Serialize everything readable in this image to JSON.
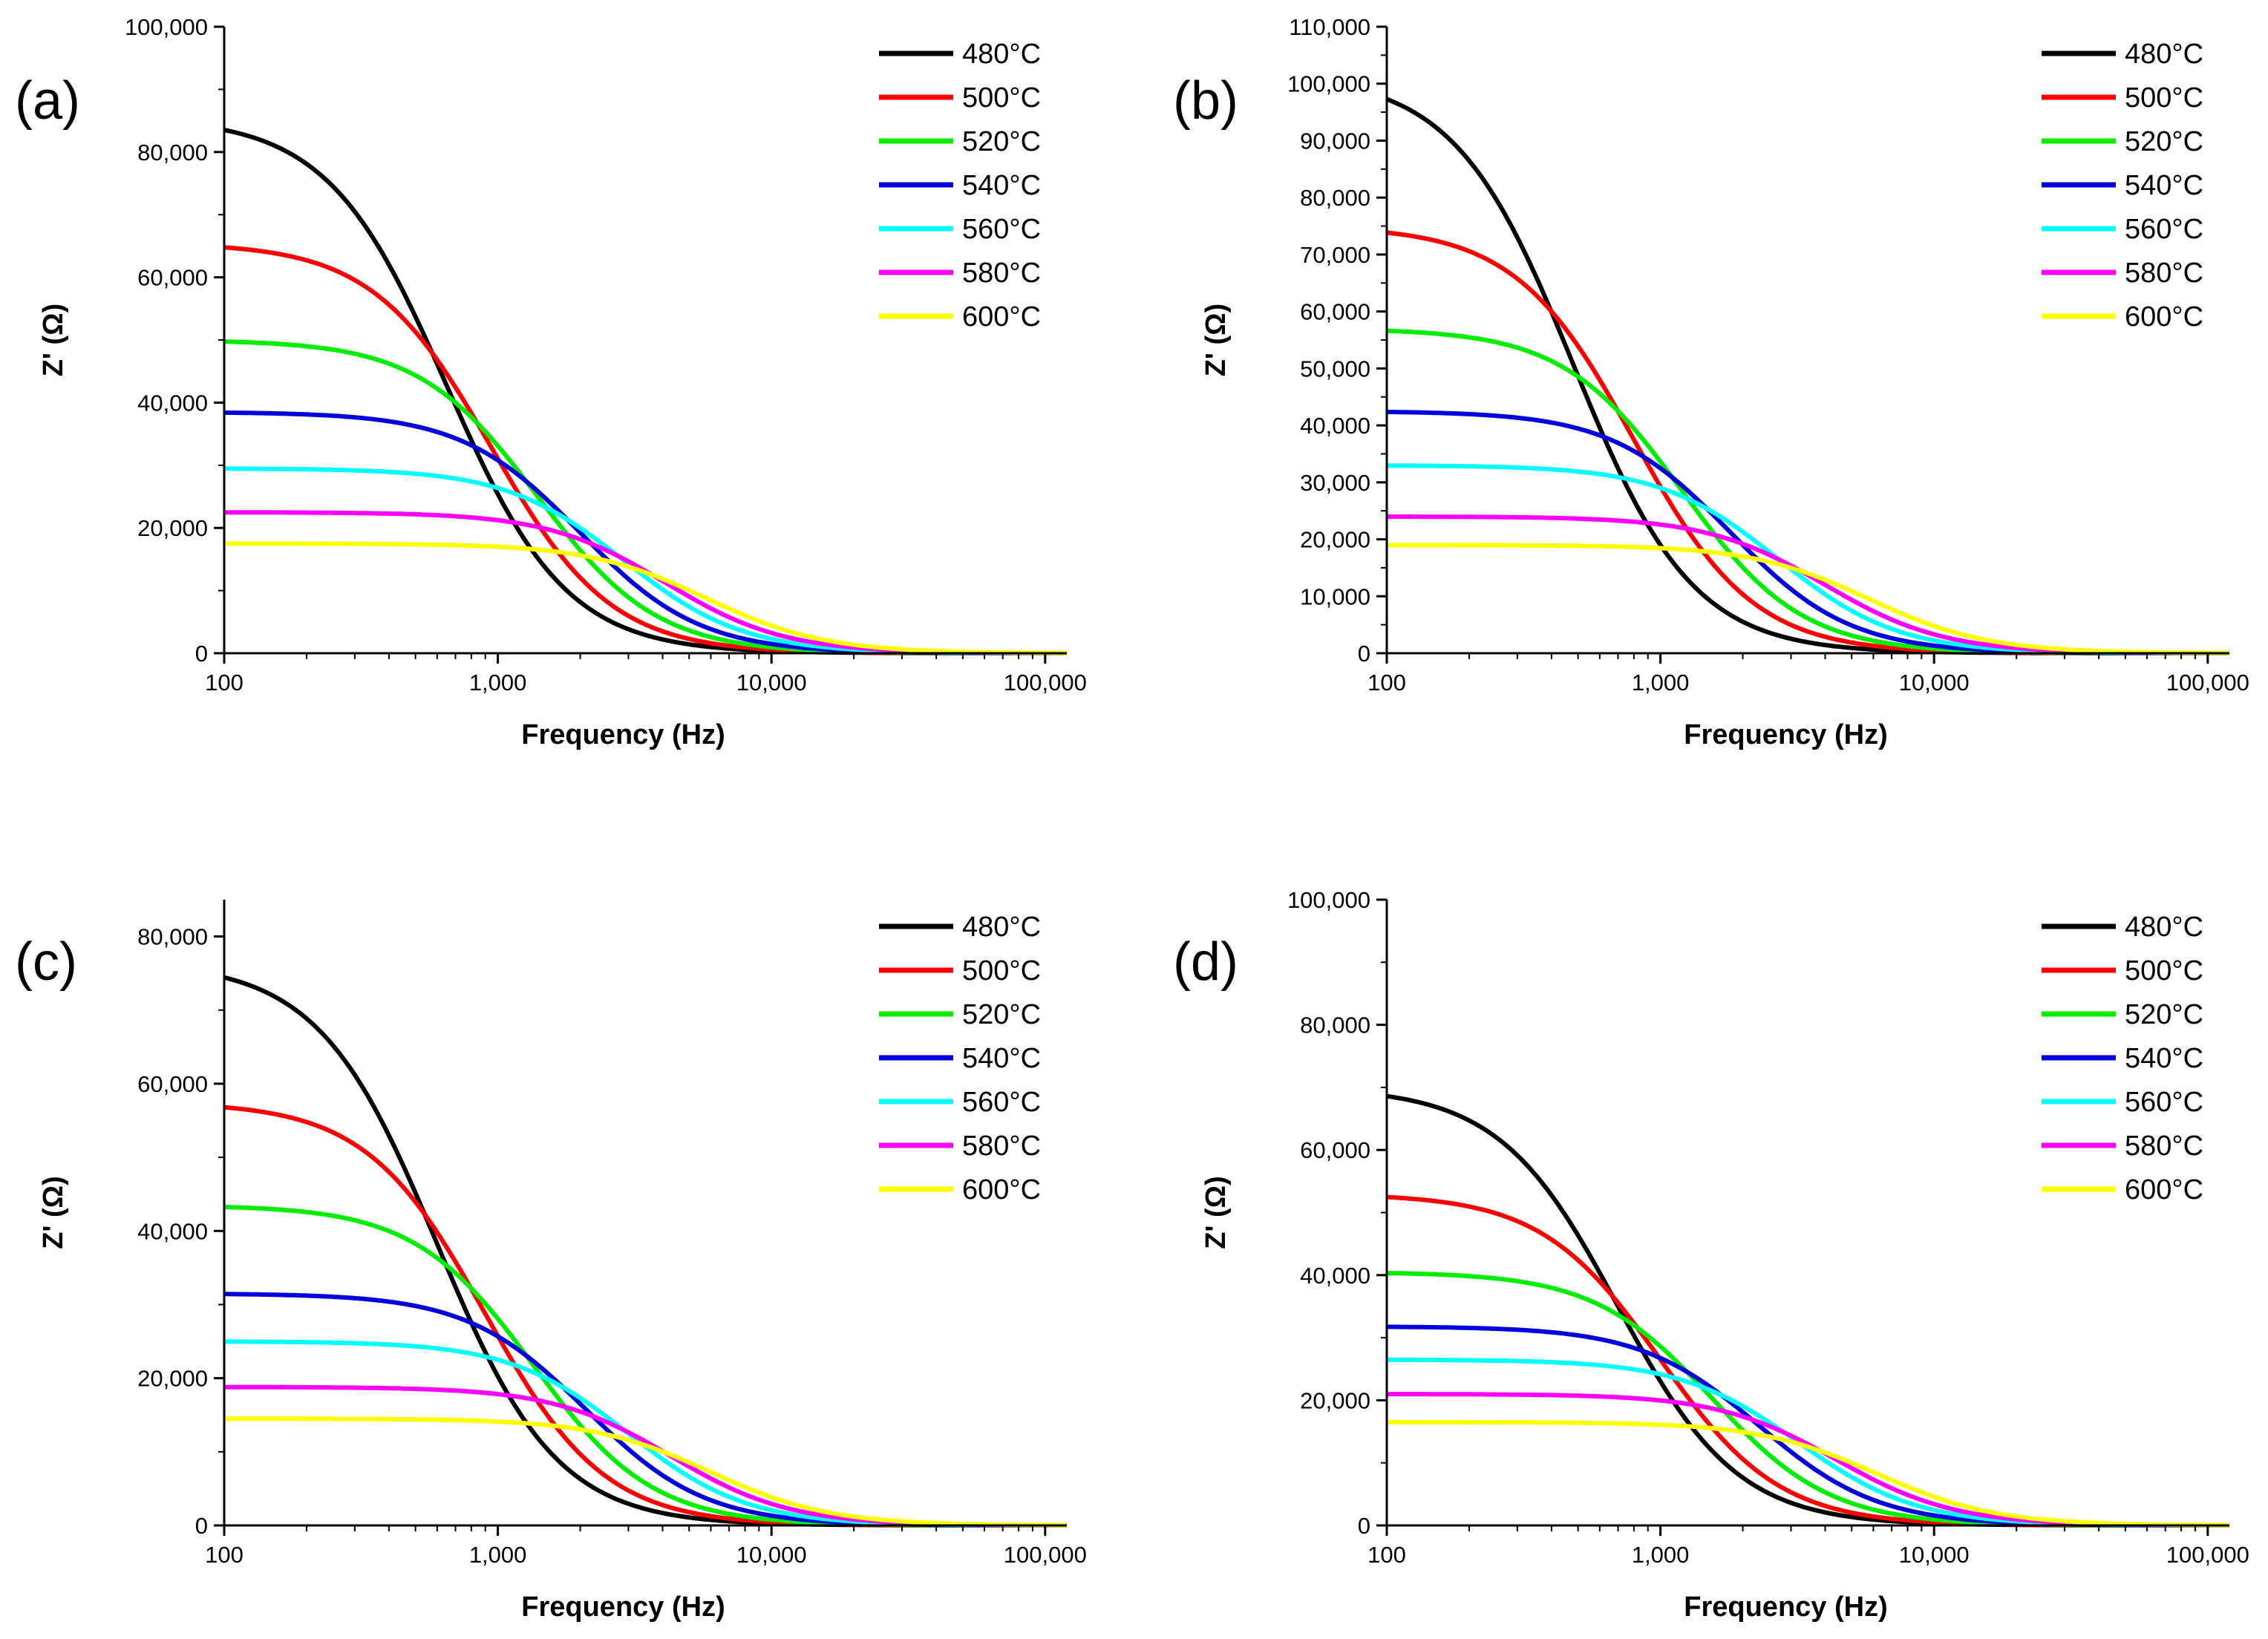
{
  "chart_data": [
    {
      "type": "line",
      "panel_label": "(a)",
      "xlabel": "Frequency (Hz)",
      "ylabel": "Z' (Ω)",
      "xscale": "log",
      "xlim": [
        100,
        120000
      ],
      "ylim": [
        0,
        100000
      ],
      "xticks": [
        100,
        1000,
        10000,
        100000
      ],
      "xtick_labels": [
        "100",
        "1,000",
        "10,000",
        "100,000"
      ],
      "yticks": [
        0,
        20000,
        40000,
        60000,
        80000,
        100000
      ],
      "ytick_labels": [
        "0",
        "20,000",
        "40,000",
        "60,000",
        "80,000",
        "100,000"
      ],
      "legend_position": "top-right",
      "series": [
        {
          "name": "480",
          "color": "#000000",
          "plateau": 85500,
          "f_half": 650
        },
        {
          "name": "500",
          "color": "#ff0000",
          "plateau": 65500,
          "f_half": 950
        },
        {
          "name": "520",
          "color": "#00ee00",
          "plateau": 50000,
          "f_half": 1400
        },
        {
          "name": "540",
          "color": "#0000dd",
          "plateau": 38500,
          "f_half": 2000
        },
        {
          "name": "560",
          "color": "#00ffff",
          "plateau": 29500,
          "f_half": 2900
        },
        {
          "name": "580",
          "color": "#ff00ff",
          "plateau": 22500,
          "f_half": 4100
        },
        {
          "name": "600",
          "color": "#ffff00",
          "plateau": 17500,
          "f_half": 5800
        }
      ]
    },
    {
      "type": "line",
      "panel_label": "(b)",
      "xlabel": "Frequency (Hz)",
      "ylabel": "Z' (Ω)",
      "xscale": "log",
      "xlim": [
        100,
        120000
      ],
      "ylim": [
        0,
        110000
      ],
      "xticks": [
        100,
        1000,
        10000,
        100000
      ],
      "xtick_labels": [
        "100",
        "1,000",
        "10,000",
        "100,000"
      ],
      "yticks": [
        0,
        10000,
        20000,
        30000,
        40000,
        50000,
        60000,
        70000,
        80000,
        90000,
        100000,
        110000
      ],
      "ytick_labels": [
        "0",
        "10,000",
        "20,000",
        "30,000",
        "40,000",
        "50,000",
        "60,000",
        "70,000",
        "80,000",
        "90,000",
        "100,000",
        "110,000"
      ],
      "legend_position": "top-right",
      "series": [
        {
          "name": "480",
          "color": "#000000",
          "plateau": 101500,
          "f_half": 480
        },
        {
          "name": "500",
          "color": "#ff0000",
          "plateau": 75000,
          "f_half": 800
        },
        {
          "name": "520",
          "color": "#00ee00",
          "plateau": 57000,
          "f_half": 1200
        },
        {
          "name": "540",
          "color": "#0000dd",
          "plateau": 42500,
          "f_half": 1800
        },
        {
          "name": "560",
          "color": "#00ffff",
          "plateau": 33000,
          "f_half": 2700
        },
        {
          "name": "580",
          "color": "#ff00ff",
          "plateau": 24000,
          "f_half": 4000
        },
        {
          "name": "600",
          "color": "#ffff00",
          "plateau": 19000,
          "f_half": 5800
        }
      ]
    },
    {
      "type": "line",
      "panel_label": "(c)",
      "xlabel": "Frequency (Hz)",
      "ylabel": "Z' (Ω)",
      "xscale": "log",
      "xlim": [
        100,
        120000
      ],
      "ylim": [
        0,
        85000
      ],
      "xticks": [
        100,
        1000,
        10000,
        100000
      ],
      "xtick_labels": [
        "100",
        "1,000",
        "10,000",
        "100,000"
      ],
      "yticks": [
        0,
        20000,
        40000,
        60000,
        80000
      ],
      "ytick_labels": [
        "0",
        "20,000",
        "40,000",
        "60,000",
        "80,000"
      ],
      "legend_position": "top-right",
      "series": [
        {
          "name": "480",
          "color": "#000000",
          "plateau": 76500,
          "f_half": 600
        },
        {
          "name": "500",
          "color": "#ff0000",
          "plateau": 57500,
          "f_half": 900
        },
        {
          "name": "520",
          "color": "#00ee00",
          "plateau": 43500,
          "f_half": 1350
        },
        {
          "name": "540",
          "color": "#0000dd",
          "plateau": 31500,
          "f_half": 2100
        },
        {
          "name": "560",
          "color": "#00ffff",
          "plateau": 25000,
          "f_half": 3000
        },
        {
          "name": "580",
          "color": "#ff00ff",
          "plateau": 18800,
          "f_half": 4300
        },
        {
          "name": "600",
          "color": "#ffff00",
          "plateau": 14500,
          "f_half": 6000
        }
      ]
    },
    {
      "type": "line",
      "panel_label": "(d)",
      "xlabel": "Frequency (Hz)",
      "ylabel": "Z' (Ω)",
      "xscale": "log",
      "xlim": [
        100,
        120000
      ],
      "ylim": [
        0,
        100000
      ],
      "xticks": [
        100,
        1000,
        10000,
        100000
      ],
      "xtick_labels": [
        "100",
        "1,000",
        "10,000",
        "100,000"
      ],
      "yticks": [
        0,
        20000,
        40000,
        60000,
        80000,
        100000
      ],
      "ytick_labels": [
        "0",
        "20,000",
        "40,000",
        "60,000",
        "80,000",
        "100,000"
      ],
      "legend_position": "top-right",
      "series": [
        {
          "name": "480",
          "color": "#000000",
          "plateau": 70000,
          "f_half": 700
        },
        {
          "name": "500",
          "color": "#ff0000",
          "plateau": 53000,
          "f_half": 1000
        },
        {
          "name": "520",
          "color": "#00ee00",
          "plateau": 40500,
          "f_half": 1550
        },
        {
          "name": "540",
          "color": "#0000dd",
          "plateau": 31800,
          "f_half": 2300
        },
        {
          "name": "560",
          "color": "#00ffff",
          "plateau": 26500,
          "f_half": 3200
        },
        {
          "name": "580",
          "color": "#ff00ff",
          "plateau": 21000,
          "f_half": 4400
        },
        {
          "name": "600",
          "color": "#ffff00",
          "plateau": 16500,
          "f_half": 6200
        }
      ]
    }
  ],
  "legend_unit": "°C"
}
